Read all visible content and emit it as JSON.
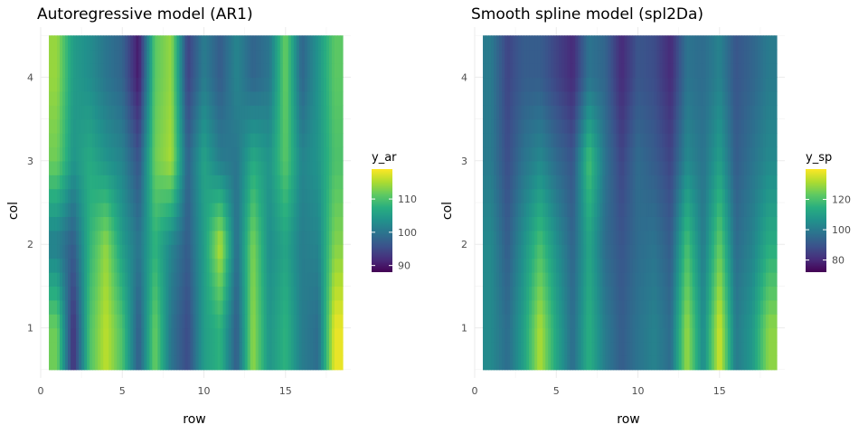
{
  "chart_data": [
    {
      "type": "heatmap",
      "title": "Autoregressive model (AR1)",
      "xlabel": "row",
      "ylabel": "col",
      "xlim": [
        0,
        19
      ],
      "ylim": [
        0.4,
        4.6
      ],
      "x_ticks": [
        0,
        5,
        10,
        15
      ],
      "y_ticks": [
        1,
        2,
        3,
        4
      ],
      "x": [
        1,
        2,
        3,
        4,
        5,
        6,
        7,
        8,
        9,
        10,
        11,
        12,
        13,
        14,
        15,
        16,
        17,
        18
      ],
      "y": [
        1,
        2,
        3,
        4
      ],
      "legend": {
        "title": "y_ar",
        "placement": "right",
        "breaks": [
          90,
          100,
          110
        ],
        "range": [
          88,
          119
        ]
      },
      "grid": true,
      "values": [
        [
          112,
          92,
          110,
          116,
          110,
          97,
          112,
          100,
          95,
          105,
          108,
          97,
          114,
          104,
          108,
          101,
          99,
          118
        ],
        [
          101,
          97,
          108,
          114,
          105,
          100,
          108,
          102,
          97,
          105,
          116,
          99,
          113,
          103,
          106,
          101,
          102,
          113
        ],
        [
          112,
          104,
          107,
          104,
          102,
          96,
          112,
          115,
          98,
          106,
          101,
          100,
          107,
          104,
          111,
          102,
          104,
          110
        ],
        [
          114,
          105,
          103,
          100,
          98,
          90,
          111,
          114,
          94,
          101,
          97,
          102,
          98,
          100,
          112,
          98,
          104,
          111
        ]
      ]
    },
    {
      "type": "heatmap",
      "title": "Smooth spline model (spl2Da)",
      "xlabel": "row",
      "ylabel": "col",
      "xlim": [
        0,
        19
      ],
      "ylim": [
        0.4,
        4.6
      ],
      "x_ticks": [
        0,
        5,
        10,
        15
      ],
      "y_ticks": [
        1,
        2,
        3,
        4
      ],
      "x": [
        1,
        2,
        3,
        4,
        5,
        6,
        7,
        8,
        9,
        10,
        11,
        12,
        13,
        14,
        15,
        16,
        17,
        18
      ],
      "y": [
        1,
        2,
        3,
        4
      ],
      "legend": {
        "title": "y_sp",
        "placement": "right",
        "breaks": [
          80,
          100,
          120
        ],
        "range": [
          72,
          140
        ]
      },
      "grid": true,
      "values": [
        [
          104,
          96,
          110,
          132,
          112,
          96,
          115,
          100,
          92,
          98,
          102,
          96,
          130,
          104,
          136,
          100,
          108,
          128
        ],
        [
          104,
          92,
          106,
          120,
          106,
          94,
          112,
          96,
          90,
          96,
          98,
          92,
          120,
          100,
          124,
          96,
          102,
          114
        ],
        [
          100,
          88,
          98,
          104,
          96,
          90,
          120,
          98,
          86,
          96,
          92,
          86,
          104,
          98,
          110,
          92,
          98,
          104
        ],
        [
          100,
          86,
          92,
          92,
          86,
          80,
          98,
          94,
          80,
          90,
          88,
          80,
          98,
          96,
          102,
          90,
          94,
          100
        ]
      ]
    }
  ]
}
